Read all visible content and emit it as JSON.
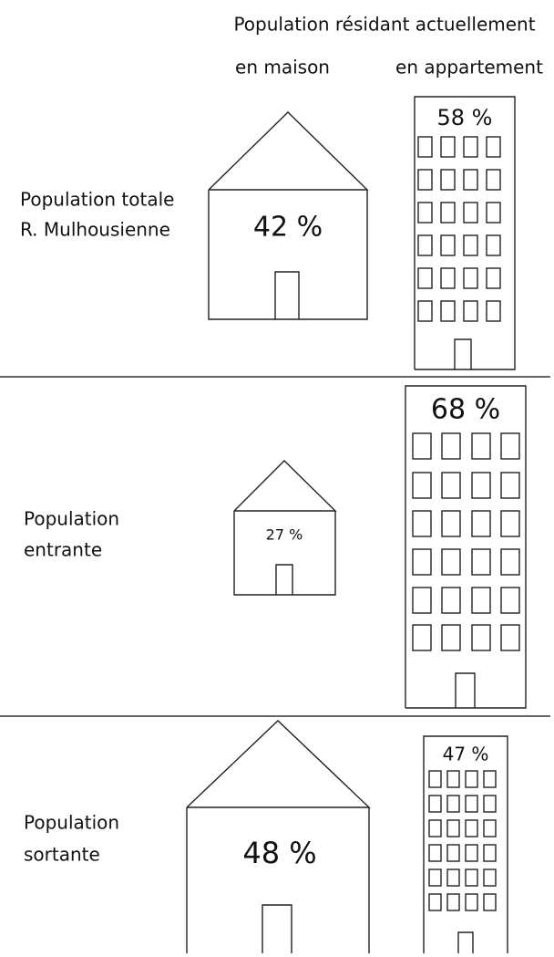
{
  "header": {
    "title": "Population résidant actuellement",
    "col_house": "en maison",
    "col_apartment": "en appartement"
  },
  "rows": [
    {
      "label": [
        "Population totale",
        "R. Mulhousienne"
      ],
      "house": "42 %",
      "apartment": "58 %"
    },
    {
      "label": [
        "Population",
        "entrante"
      ],
      "house": "27 %",
      "apartment": "68 %"
    },
    {
      "label": [
        "Population",
        "sortante"
      ],
      "house": "48 %",
      "apartment": "47 %"
    }
  ]
}
